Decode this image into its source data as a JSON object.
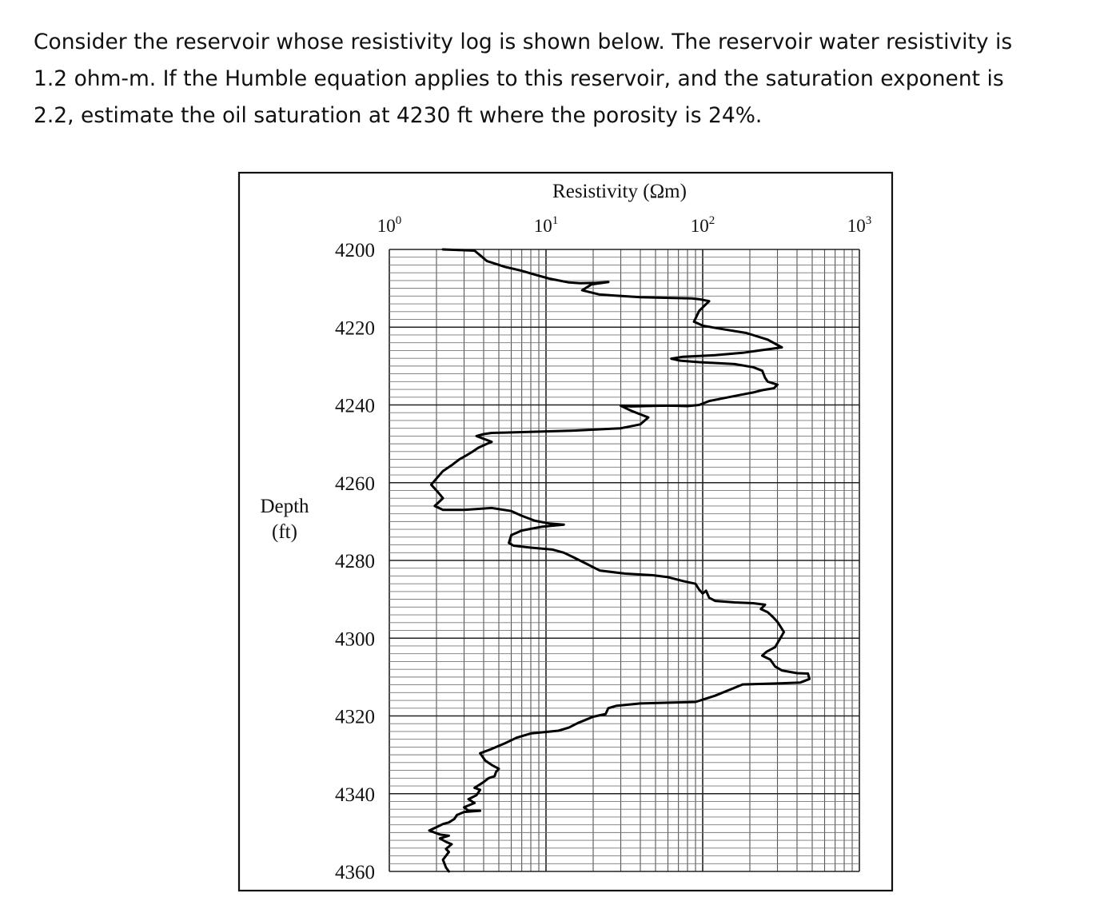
{
  "question": {
    "lines": [
      "Consider the reservoir whose resistivity log is shown below. The reservoir water resistivity is",
      "1.2 ohm-m. If the Humble equation applies to this reservoir, and the saturation exponent is",
      "2.2, estimate the oil saturation at 4230 ft where the porosity is 24%."
    ]
  },
  "chart_data": {
    "type": "line",
    "title": "Resistivity (Ωm)",
    "xlabel": "Resistivity (Ωm)",
    "ylabel_lines": [
      "Depth",
      "(ft)"
    ],
    "x_scale": "log",
    "xlim": [
      1,
      1000
    ],
    "ylim": [
      4200,
      4360
    ],
    "y_inverted": true,
    "x_ticks": [
      {
        "value": 1,
        "base": "10",
        "exp": "0"
      },
      {
        "value": 10,
        "base": "10",
        "exp": "1"
      },
      {
        "value": 100,
        "base": "10",
        "exp": "2"
      },
      {
        "value": 1000,
        "base": "10",
        "exp": "3"
      }
    ],
    "y_ticks": [
      4200,
      4220,
      4240,
      4260,
      4280,
      4300,
      4320,
      4340,
      4360
    ],
    "grid": true,
    "series": [
      {
        "points": [
          [
            2.2,
            4200
          ],
          [
            3.5,
            4200.3
          ],
          [
            3.8,
            4201.5
          ],
          [
            4.2,
            4203
          ],
          [
            5.5,
            4204.5
          ],
          [
            7,
            4205.5
          ],
          [
            8.5,
            4206.5
          ],
          [
            10.5,
            4207.5
          ],
          [
            14,
            4208.5
          ],
          [
            16.5,
            4208.7
          ],
          [
            21,
            4208.6
          ],
          [
            25,
            4208.4
          ],
          [
            19.5,
            4209
          ],
          [
            17,
            4210.5
          ],
          [
            22,
            4211.6
          ],
          [
            40,
            4212.3
          ],
          [
            65,
            4212.5
          ],
          [
            85,
            4212.6
          ],
          [
            95,
            4212.8
          ],
          [
            110,
            4213.3
          ],
          [
            95,
            4215.8
          ],
          [
            88,
            4218.6
          ],
          [
            100,
            4219.6
          ],
          [
            125,
            4220.3
          ],
          [
            190,
            4221.5
          ],
          [
            260,
            4223.2
          ],
          [
            320,
            4225.2
          ],
          [
            230,
            4226
          ],
          [
            180,
            4226.6
          ],
          [
            120,
            4227.2
          ],
          [
            75,
            4227.6
          ],
          [
            63,
            4228.1
          ],
          [
            72,
            4228.6
          ],
          [
            95,
            4229
          ],
          [
            160,
            4229.5
          ],
          [
            210,
            4230.3
          ],
          [
            240,
            4231.2
          ],
          [
            250,
            4233
          ],
          [
            260,
            4234
          ],
          [
            300,
            4234.8
          ],
          [
            285,
            4235.7
          ],
          [
            240,
            4236.2
          ],
          [
            210,
            4236.8
          ],
          [
            170,
            4237.5
          ],
          [
            135,
            4238.3
          ],
          [
            110,
            4239
          ],
          [
            95,
            4240
          ],
          [
            80,
            4240.3
          ],
          [
            65,
            4240.2
          ],
          [
            54,
            4240.2
          ],
          [
            35,
            4240.4
          ],
          [
            30,
            4240.2
          ],
          [
            35,
            4241.5
          ],
          [
            45,
            4243.2
          ],
          [
            40,
            4245
          ],
          [
            30,
            4246
          ],
          [
            15,
            4246.6
          ],
          [
            7,
            4247
          ],
          [
            4.5,
            4247.2
          ],
          [
            4,
            4247.5
          ],
          [
            3.6,
            4248
          ],
          [
            4.5,
            4249.5
          ],
          [
            4.2,
            4250
          ],
          [
            3.7,
            4251
          ],
          [
            3.4,
            4252
          ],
          [
            3.1,
            4253
          ],
          [
            2.8,
            4254
          ],
          [
            2.5,
            4255.5
          ],
          [
            2.2,
            4257
          ],
          [
            1.85,
            4260.5
          ],
          [
            2.05,
            4262.5
          ],
          [
            2.2,
            4264
          ],
          [
            1.95,
            4266
          ],
          [
            2.2,
            4267
          ],
          [
            3,
            4267
          ],
          [
            4.5,
            4266.5
          ],
          [
            6,
            4267.3
          ],
          [
            7,
            4268.5
          ],
          [
            8.5,
            4269.8
          ],
          [
            10.5,
            4270.5
          ],
          [
            13,
            4270.8
          ],
          [
            9.5,
            4271.3
          ],
          [
            7,
            4272.3
          ],
          [
            6,
            4273.5
          ],
          [
            5.8,
            4275.5
          ],
          [
            6.2,
            4276.2
          ],
          [
            8,
            4276.7
          ],
          [
            11,
            4277.2
          ],
          [
            13,
            4278
          ],
          [
            15,
            4279.2
          ],
          [
            18,
            4280.8
          ],
          [
            22,
            4282.6
          ],
          [
            32,
            4283.4
          ],
          [
            48,
            4283.8
          ],
          [
            60,
            4284.3
          ],
          [
            75,
            4285.3
          ],
          [
            90,
            4286
          ],
          [
            95,
            4287.5
          ],
          [
            100,
            4288.5
          ],
          [
            105,
            4287.8
          ],
          [
            110,
            4289.6
          ],
          [
            120,
            4290.4
          ],
          [
            160,
            4290.8
          ],
          [
            210,
            4291
          ],
          [
            250,
            4291.4
          ],
          [
            235,
            4292.5
          ],
          [
            260,
            4293.3
          ],
          [
            280,
            4294.5
          ],
          [
            300,
            4295.8
          ],
          [
            330,
            4298.4
          ],
          [
            310,
            4300.3
          ],
          [
            290,
            4302.3
          ],
          [
            255,
            4303.5
          ],
          [
            240,
            4304.5
          ],
          [
            270,
            4305.5
          ],
          [
            290,
            4307.3
          ],
          [
            320,
            4308.3
          ],
          [
            400,
            4309
          ],
          [
            470,
            4309.1
          ],
          [
            480,
            4310.5
          ],
          [
            420,
            4311.4
          ],
          [
            310,
            4311.6
          ],
          [
            180,
            4311.9
          ],
          [
            120,
            4314.8
          ],
          [
            90,
            4316.4
          ],
          [
            40,
            4316.8
          ],
          [
            28,
            4317.4
          ],
          [
            25,
            4318
          ],
          [
            24,
            4319.5
          ],
          [
            20,
            4320.2
          ],
          [
            16,
            4321.8
          ],
          [
            14,
            4323
          ],
          [
            12,
            4323.8
          ],
          [
            8,
            4324.5
          ],
          [
            6.5,
            4325.6
          ],
          [
            5.5,
            4327
          ],
          [
            4.5,
            4328.5
          ],
          [
            3.8,
            4329.6
          ],
          [
            4.1,
            4331.5
          ],
          [
            4.5,
            4332.6
          ],
          [
            5,
            4333.6
          ],
          [
            4.8,
            4334.4
          ],
          [
            4.7,
            4335.5
          ],
          [
            4.3,
            4336
          ],
          [
            4,
            4337
          ],
          [
            3.5,
            4338.5
          ],
          [
            3.8,
            4339
          ],
          [
            3.6,
            4340.4
          ],
          [
            3.2,
            4341.4
          ],
          [
            3.5,
            4342.4
          ],
          [
            3,
            4343.5
          ],
          [
            3.2,
            4344.4
          ],
          [
            3.8,
            4344.4
          ],
          [
            3,
            4344.7
          ],
          [
            2.7,
            4345.5
          ],
          [
            2.6,
            4346.5
          ],
          [
            2.4,
            4347.4
          ],
          [
            2.2,
            4347.8
          ],
          [
            2,
            4348.6
          ],
          [
            1.8,
            4349.5
          ],
          [
            2.1,
            4350.5
          ],
          [
            2.4,
            4350.8
          ],
          [
            2.1,
            4351.5
          ],
          [
            2.3,
            4352.4
          ],
          [
            2.5,
            4353
          ],
          [
            2.3,
            4354.2
          ],
          [
            2.4,
            4355
          ],
          [
            2.2,
            4357
          ],
          [
            2.3,
            4359
          ],
          [
            2.4,
            4360
          ]
        ]
      }
    ]
  }
}
